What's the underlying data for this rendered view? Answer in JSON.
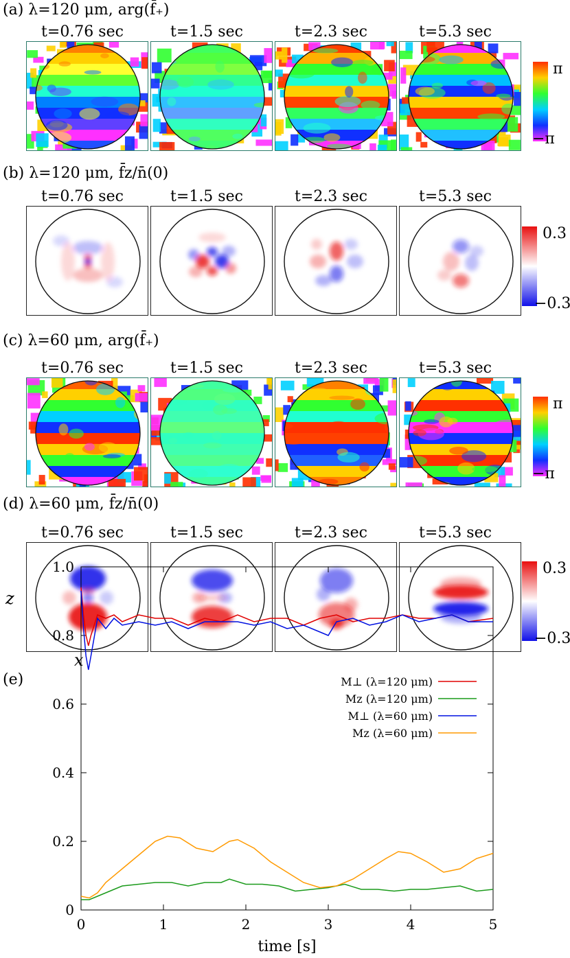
{
  "figure": {
    "rows": [
      {
        "id": "a",
        "label": "(a) λ=120 μm, arg(f̄₊)",
        "kind": "phase",
        "cbar_top": "π",
        "cbar_bottom": "−π",
        "times": [
          "t=0.76 sec",
          "t=1.5 sec",
          "t=2.3 sec",
          "t=5.3 sec"
        ]
      },
      {
        "id": "b",
        "label": "(b) λ=120 μm, f̄z/n̄(0)",
        "kind": "fz",
        "cbar_top": "0.3",
        "cbar_bottom": "−0.3",
        "times": [
          "t=0.76 sec",
          "t=1.5 sec",
          "t=2.3 sec",
          "t=5.3 sec"
        ]
      },
      {
        "id": "c",
        "label": "(c) λ=60 μm, arg(f̄₊)",
        "kind": "phase",
        "cbar_top": "π",
        "cbar_bottom": "−π",
        "times": [
          "t=0.76 sec",
          "t=1.5 sec",
          "t=2.3 sec",
          "t=5.3 sec"
        ]
      },
      {
        "id": "d",
        "label": "(d) λ=60 μm, f̄z/n̄(0)",
        "kind": "fz",
        "cbar_top": "0.3",
        "cbar_bottom": "−0.3",
        "times": [
          "t=0.76 sec",
          "t=1.5 sec",
          "t=2.3 sec",
          "t=5.3 sec"
        ]
      }
    ],
    "axis_x_letter": "x",
    "axis_z_letter": "z",
    "colors": {
      "phase_stops": [
        "#ff3000",
        "#ffd000",
        "#30ff30",
        "#00d0ff",
        "#1030ff",
        "#ff30ff"
      ],
      "fz_positive": "#e81010",
      "fz_negative": "#1010e8"
    }
  },
  "chart_data": {
    "type": "line",
    "panel_label": "(e)",
    "title": "",
    "xlabel": "time [s]",
    "ylabel": "",
    "xlim": [
      0,
      5
    ],
    "ylim": [
      0,
      1.0
    ],
    "xticks": [
      "0",
      "1",
      "2",
      "3",
      "4",
      "5"
    ],
    "yticks": [
      "0",
      "0.2",
      "0.4",
      "0.6",
      "0.8",
      "1.0"
    ],
    "legend_position": "center-right",
    "series": [
      {
        "name": "M⊥ (λ=120 μm)",
        "color": "#e00000",
        "x": [
          0,
          0.03,
          0.06,
          0.09,
          0.12,
          0.2,
          0.3,
          0.4,
          0.5,
          0.7,
          0.9,
          1.1,
          1.3,
          1.5,
          1.7,
          1.9,
          2.1,
          2.3,
          2.5,
          2.7,
          2.9,
          3.1,
          3.3,
          3.5,
          3.7,
          3.9,
          4.1,
          4.3,
          4.5,
          4.7,
          5.0
        ],
        "y": [
          0.94,
          0.86,
          0.8,
          0.77,
          0.8,
          0.86,
          0.85,
          0.86,
          0.84,
          0.86,
          0.85,
          0.85,
          0.83,
          0.85,
          0.84,
          0.86,
          0.84,
          0.85,
          0.85,
          0.83,
          0.85,
          0.86,
          0.84,
          0.85,
          0.85,
          0.86,
          0.85,
          0.85,
          0.86,
          0.84,
          0.85
        ]
      },
      {
        "name": "Mz (λ=120 μm)",
        "color": "#1a9a1a",
        "x": [
          0,
          0.1,
          0.2,
          0.3,
          0.5,
          0.7,
          0.9,
          1.1,
          1.3,
          1.5,
          1.7,
          1.8,
          2.0,
          2.2,
          2.4,
          2.6,
          2.8,
          3.0,
          3.2,
          3.4,
          3.6,
          3.8,
          4.0,
          4.2,
          4.4,
          4.6,
          4.8,
          5.0
        ],
        "y": [
          0.03,
          0.03,
          0.04,
          0.05,
          0.07,
          0.075,
          0.08,
          0.08,
          0.07,
          0.08,
          0.08,
          0.09,
          0.075,
          0.075,
          0.07,
          0.055,
          0.06,
          0.065,
          0.075,
          0.06,
          0.06,
          0.055,
          0.06,
          0.06,
          0.065,
          0.07,
          0.055,
          0.06
        ]
      },
      {
        "name": "M⊥ (λ=60 μm)",
        "color": "#0010e0",
        "x": [
          0,
          0.03,
          0.06,
          0.09,
          0.12,
          0.2,
          0.3,
          0.4,
          0.5,
          0.7,
          0.9,
          1.1,
          1.3,
          1.5,
          1.7,
          1.9,
          2.1,
          2.3,
          2.5,
          2.7,
          2.9,
          3.0,
          3.1,
          3.3,
          3.5,
          3.7,
          3.9,
          4.1,
          4.3,
          4.5,
          4.7,
          5.0
        ],
        "y": [
          0.93,
          0.82,
          0.74,
          0.7,
          0.74,
          0.85,
          0.82,
          0.85,
          0.83,
          0.84,
          0.83,
          0.84,
          0.82,
          0.84,
          0.84,
          0.84,
          0.83,
          0.84,
          0.82,
          0.83,
          0.81,
          0.8,
          0.84,
          0.85,
          0.83,
          0.84,
          0.86,
          0.84,
          0.85,
          0.86,
          0.84,
          0.84
        ]
      },
      {
        "name": "Mz (λ=60 μm)",
        "color": "#ff9a00",
        "x": [
          0,
          0.1,
          0.2,
          0.3,
          0.5,
          0.7,
          0.9,
          1.05,
          1.2,
          1.4,
          1.6,
          1.8,
          1.9,
          2.1,
          2.3,
          2.5,
          2.7,
          2.9,
          3.1,
          3.3,
          3.5,
          3.7,
          3.85,
          4.0,
          4.2,
          4.4,
          4.6,
          4.8,
          5.0
        ],
        "y": [
          0.04,
          0.035,
          0.05,
          0.08,
          0.12,
          0.16,
          0.2,
          0.215,
          0.21,
          0.18,
          0.17,
          0.2,
          0.205,
          0.18,
          0.14,
          0.11,
          0.08,
          0.065,
          0.07,
          0.09,
          0.12,
          0.15,
          0.17,
          0.165,
          0.14,
          0.11,
          0.12,
          0.15,
          0.165
        ]
      }
    ]
  }
}
